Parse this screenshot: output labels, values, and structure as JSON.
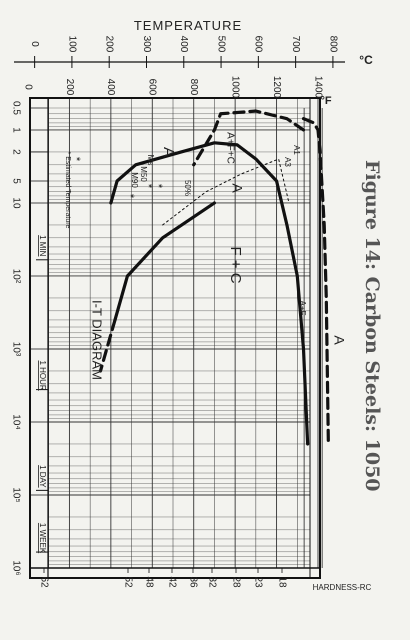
{
  "figure_caption": "Figure 14: Carbon Steels: 1050",
  "chart_data": {
    "type": "line",
    "title": "I-T DIAGRAM",
    "top_axis_label": "TEMPERATURE",
    "celsius_unit": "°C",
    "fahrenheit_unit": "°F",
    "celsius_ticks": [
      "0",
      "100",
      "200",
      "300",
      "400",
      "500",
      "600",
      "700",
      "800"
    ],
    "fahrenheit_ticks": [
      "0",
      "200",
      "400",
      "600",
      "800",
      "1000",
      "1200",
      "1400"
    ],
    "time_ticks": [
      "0.5",
      "1",
      "2",
      "5",
      "10",
      "10²",
      "10³",
      "10⁴",
      "10⁵",
      "10⁶"
    ],
    "time_labels": [
      "1 MIN",
      "1 HOUR",
      "1 DAY",
      "1 WEEK"
    ],
    "hardness_axis_label": "HARDNESS-RC",
    "hardness_ticks": [
      "62",
      "52",
      "48",
      "42",
      "36",
      "32",
      "28",
      "23",
      "18"
    ],
    "region_labels": [
      "A",
      "A+F+C",
      "F + C",
      "A",
      "A+F",
      "A",
      "50%"
    ],
    "critical_labels": [
      "A1",
      "A3"
    ],
    "ms_labels": [
      "Ms",
      "M50",
      "M90"
    ],
    "estimated_note": "* Estimated Temperature",
    "log_time_axis": true,
    "series": [
      {
        "style": "solid",
        "points": [
          [
            10,
            400
          ],
          [
            5,
            430
          ],
          [
            3,
            520
          ],
          [
            2,
            740
          ],
          [
            1.5,
            900
          ],
          [
            1.6,
            1010
          ],
          [
            2.5,
            1100
          ],
          [
            5,
            1200
          ],
          [
            20,
            1250
          ],
          [
            100,
            1300
          ],
          [
            1000,
            1330
          ],
          [
            20000,
            1350
          ]
        ]
      },
      {
        "style": "solid",
        "points": [
          [
            10,
            900
          ],
          [
            30,
            650
          ],
          [
            100,
            480
          ],
          [
            400,
            420
          ]
        ]
      },
      {
        "style": "dashed",
        "points": [
          [
            400,
            420
          ],
          [
            1000,
            380
          ],
          [
            2000,
            350
          ]
        ]
      },
      {
        "style": "dashed",
        "points": [
          [
            1,
            1330
          ],
          [
            0.7,
            1250
          ],
          [
            0.55,
            1100
          ],
          [
            0.6,
            930
          ],
          [
            1,
            900
          ],
          [
            3,
            800
          ]
        ]
      },
      {
        "style": "dashed",
        "points": [
          [
            0.7,
            1330
          ],
          [
            0.8,
            1380
          ],
          [
            1,
            1400
          ],
          [
            2,
            1410
          ],
          [
            20,
            1430
          ],
          [
            200,
            1440
          ],
          [
            20000,
            1450
          ]
        ]
      },
      {
        "style": "dotted",
        "points": [
          [
            20,
            650
          ],
          [
            7,
            860
          ],
          [
            4,
            1030
          ],
          [
            2.5,
            1210
          ],
          [
            10,
            1260
          ]
        ]
      }
    ],
    "reference_lines": [
      {
        "label": "A1",
        "temperature_f": 1333
      },
      {
        "label": "A3",
        "temperature_f": 1420
      }
    ],
    "grid": true
  }
}
